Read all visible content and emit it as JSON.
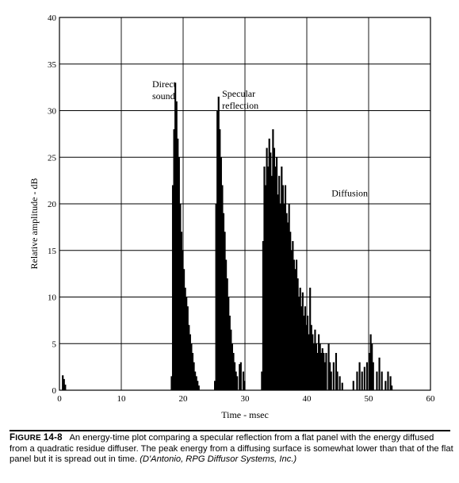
{
  "chart_data": {
    "type": "bar",
    "title": "",
    "xlabel": "Time - msec",
    "ylabel": "Relative amplitude - dB",
    "xlim": [
      0,
      60
    ],
    "ylim": [
      0,
      40
    ],
    "x_ticks": [
      0,
      10,
      20,
      30,
      40,
      50,
      60
    ],
    "x_tick_labels": [
      "0",
      "10",
      "20",
      "30",
      "40",
      "50",
      "60"
    ],
    "y_ticks": [
      0,
      5,
      10,
      15,
      20,
      25,
      30,
      35,
      40
    ],
    "y_tick_labels": [
      "0",
      "5",
      "10",
      "15",
      "20",
      "25",
      "30",
      "35",
      "40"
    ],
    "grid": true,
    "annotations": [
      {
        "id": "direct",
        "lines": [
          "Direct",
          "sound"
        ],
        "x": 15.0,
        "y": 32.5
      },
      {
        "id": "specular",
        "lines": [
          "Specular",
          "reflection"
        ],
        "x": 26.3,
        "y": 31.5
      },
      {
        "id": "diffusion",
        "lines": [
          "Diffusion"
        ],
        "x": 44.0,
        "y": 20.8
      }
    ],
    "series": [
      {
        "values": [
          [
            0.4,
            1.6
          ],
          [
            0.6,
            1.2
          ],
          [
            0.8,
            0.6
          ],
          [
            18.0,
            1.5
          ],
          [
            18.2,
            22.0
          ],
          [
            18.4,
            28.0
          ],
          [
            18.6,
            33.0
          ],
          [
            18.8,
            31.0
          ],
          [
            19.0,
            27.0
          ],
          [
            19.2,
            25.0
          ],
          [
            19.4,
            20.0
          ],
          [
            19.6,
            17.0
          ],
          [
            19.8,
            15.0
          ],
          [
            20.0,
            13.0
          ],
          [
            20.2,
            11.0
          ],
          [
            20.4,
            10.0
          ],
          [
            20.6,
            9.0
          ],
          [
            20.8,
            7.0
          ],
          [
            21.0,
            6.0
          ],
          [
            21.2,
            5.0
          ],
          [
            21.4,
            4.0
          ],
          [
            21.6,
            3.0
          ],
          [
            21.8,
            2.0
          ],
          [
            22.0,
            1.5
          ],
          [
            22.2,
            1.0
          ],
          [
            22.4,
            0.5
          ],
          [
            25.0,
            1.0
          ],
          [
            25.2,
            20.0
          ],
          [
            25.4,
            30.0
          ],
          [
            25.6,
            31.5
          ],
          [
            25.8,
            28.0
          ],
          [
            26.0,
            25.0
          ],
          [
            26.2,
            22.0
          ],
          [
            26.4,
            19.0
          ],
          [
            26.6,
            17.0
          ],
          [
            26.8,
            14.0
          ],
          [
            27.0,
            12.0
          ],
          [
            27.2,
            10.0
          ],
          [
            27.4,
            8.0
          ],
          [
            27.6,
            6.5
          ],
          [
            27.8,
            5.0
          ],
          [
            28.0,
            4.0
          ],
          [
            28.2,
            3.0
          ],
          [
            28.4,
            2.0
          ],
          [
            28.6,
            1.5
          ],
          [
            29.0,
            2.8
          ],
          [
            29.2,
            3.0
          ],
          [
            29.6,
            2.0
          ],
          [
            29.8,
            1.0
          ],
          [
            32.6,
            2.0
          ],
          [
            32.8,
            16.0
          ],
          [
            33.0,
            24.0
          ],
          [
            33.2,
            22.0
          ],
          [
            33.4,
            26.0
          ],
          [
            33.6,
            24.0
          ],
          [
            33.8,
            27.0
          ],
          [
            34.0,
            25.5
          ],
          [
            34.2,
            23.0
          ],
          [
            34.4,
            28.0
          ],
          [
            34.6,
            26.0
          ],
          [
            34.8,
            24.0
          ],
          [
            35.0,
            25.0
          ],
          [
            35.2,
            21.0
          ],
          [
            35.4,
            23.0
          ],
          [
            35.6,
            20.0
          ],
          [
            35.8,
            24.0
          ],
          [
            36.0,
            22.0
          ],
          [
            36.2,
            20.0
          ],
          [
            36.4,
            22.0
          ],
          [
            36.6,
            19.0
          ],
          [
            36.8,
            18.0
          ],
          [
            37.0,
            20.0
          ],
          [
            37.2,
            17.0
          ],
          [
            37.4,
            15.0
          ],
          [
            37.6,
            16.0
          ],
          [
            37.8,
            14.0
          ],
          [
            38.0,
            13.0
          ],
          [
            38.2,
            14.0
          ],
          [
            38.4,
            12.0
          ],
          [
            38.6,
            10.0
          ],
          [
            38.8,
            11.0
          ],
          [
            39.0,
            9.0
          ],
          [
            39.2,
            10.5
          ],
          [
            39.4,
            8.0
          ],
          [
            39.6,
            9.0
          ],
          [
            39.8,
            7.0
          ],
          [
            40.0,
            8.0
          ],
          [
            40.2,
            6.0
          ],
          [
            40.4,
            11.0
          ],
          [
            40.6,
            7.0
          ],
          [
            40.8,
            6.0
          ],
          [
            41.0,
            5.0
          ],
          [
            41.2,
            6.5
          ],
          [
            41.4,
            5.0
          ],
          [
            41.6,
            4.0
          ],
          [
            41.8,
            6.0
          ],
          [
            42.0,
            5.0
          ],
          [
            42.2,
            4.0
          ],
          [
            42.4,
            4.5
          ],
          [
            42.6,
            4.0
          ],
          [
            42.8,
            3.0
          ],
          [
            43.0,
            4.0
          ],
          [
            43.4,
            5.0
          ],
          [
            43.6,
            3.0
          ],
          [
            43.8,
            2.0
          ],
          [
            44.2,
            3.0
          ],
          [
            44.6,
            4.0
          ],
          [
            44.8,
            2.0
          ],
          [
            45.2,
            1.5
          ],
          [
            45.6,
            0.8
          ],
          [
            47.4,
            1.0
          ],
          [
            48.0,
            2.0
          ],
          [
            48.4,
            3.0
          ],
          [
            48.8,
            2.0
          ],
          [
            49.2,
            2.5
          ],
          [
            49.6,
            3.0
          ],
          [
            50.0,
            4.0
          ],
          [
            50.2,
            6.0
          ],
          [
            50.4,
            5.0
          ],
          [
            50.6,
            3.0
          ],
          [
            51.2,
            2.0
          ],
          [
            51.6,
            3.5
          ],
          [
            52.0,
            2.0
          ],
          [
            52.6,
            1.0
          ],
          [
            53.0,
            2.0
          ],
          [
            53.4,
            1.5
          ],
          [
            53.6,
            0.5
          ]
        ]
      }
    ]
  },
  "caption": {
    "figure_label_initial": "F",
    "figure_label_rest": "IGURE",
    "figure_number": "14-8",
    "text": "An energy-time plot comparing a specular reflection from a flat panel with the energy diffused from a quadratic residue diffuser. The peak energy from a diffusing surface is somewhat lower than that of the flat panel but it is spread out in time.",
    "credit": "(D'Antonio, RPG Diffusor Systems, Inc.)"
  }
}
